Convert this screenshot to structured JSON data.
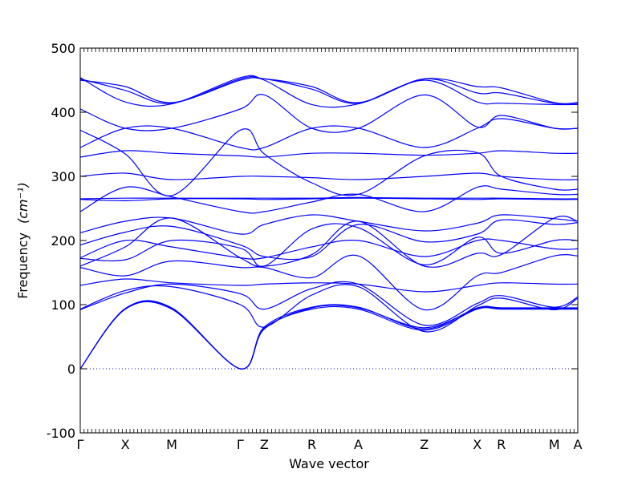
{
  "chart_data": {
    "type": "line",
    "title": "",
    "xlabel": "Wave vector",
    "ylabel": "Frequency",
    "ylabel_unit": "(cm⁻¹)",
    "ylim": [
      -100,
      500
    ],
    "yticks": [
      -100,
      0,
      100,
      200,
      300,
      400,
      500
    ],
    "grid": false,
    "legend": "none",
    "colors": {
      "bands": "#0000ff",
      "zero_line": "#0000ff",
      "axes": "#000000"
    },
    "zero_line_style": "dotted",
    "path_labels": [
      "Γ",
      "X",
      "M",
      "Γ",
      "Z",
      "R",
      "A",
      "Z",
      "X",
      "R",
      "M",
      "A"
    ],
    "path_positions": [
      0,
      0.9,
      1.83,
      3.2,
      3.68,
      4.63,
      5.56,
      6.88,
      7.94,
      8.42,
      9.48,
      9.95
    ],
    "x": [
      0,
      0.9,
      1.83,
      3.2,
      3.68,
      4.63,
      5.56,
      6.88,
      7.94,
      8.42,
      9.48,
      9.95
    ],
    "series": [
      {
        "values": [
          0,
          93,
          93,
          0,
          63,
          93,
          93,
          60,
          93,
          93,
          93,
          93
        ]
      },
      {
        "values": [
          0,
          93,
          94,
          0,
          62,
          95,
          95,
          64,
          94,
          94,
          94,
          94
        ]
      },
      {
        "values": [
          0,
          94,
          95,
          0,
          65,
          96,
          96,
          62,
          95,
          95,
          95,
          95
        ]
      },
      {
        "values": [
          92,
          118,
          132,
          117,
          93,
          125,
          132,
          68,
          102,
          114,
          96,
          112
        ]
      },
      {
        "values": [
          93,
          122,
          128,
          100,
          65,
          115,
          128,
          58,
          98,
          110,
          92,
          110
        ]
      },
      {
        "values": [
          130,
          140,
          134,
          130,
          132,
          134,
          132,
          120,
          130,
          134,
          132,
          132
        ]
      },
      {
        "values": [
          158,
          145,
          168,
          158,
          158,
          142,
          176,
          92,
          145,
          150,
          176,
          176
        ]
      },
      {
        "values": [
          160,
          190,
          235,
          173,
          160,
          178,
          230,
          160,
          180,
          178,
          235,
          230
        ]
      },
      {
        "values": [
          172,
          170,
          200,
          188,
          160,
          218,
          220,
          162,
          205,
          180,
          200,
          200
        ]
      },
      {
        "values": [
          173,
          200,
          190,
          173,
          173,
          190,
          200,
          175,
          200,
          200,
          187,
          187
        ]
      },
      {
        "values": [
          193,
          213,
          222,
          193,
          175,
          175,
          225,
          198,
          210,
          232,
          225,
          228
        ]
      },
      {
        "values": [
          212,
          230,
          235,
          210,
          225,
          240,
          230,
          215,
          227,
          240,
          234,
          230
        ]
      },
      {
        "values": [
          245,
          283,
          268,
          245,
          245,
          260,
          272,
          245,
          283,
          280,
          272,
          272
        ]
      },
      {
        "values": [
          264,
          262,
          265,
          265,
          264,
          265,
          266,
          265,
          264,
          265,
          264,
          264
        ]
      },
      {
        "values": [
          265,
          266,
          266,
          266,
          266,
          266,
          267,
          266,
          266,
          266,
          265,
          265
        ]
      },
      {
        "values": [
          300,
          305,
          295,
          300,
          300,
          298,
          295,
          300,
          305,
          300,
          295,
          295
        ]
      },
      {
        "values": [
          330,
          340,
          336,
          332,
          330,
          336,
          336,
          333,
          336,
          340,
          336,
          336
        ]
      },
      {
        "values": [
          345,
          375,
          375,
          345,
          345,
          375,
          375,
          345,
          375,
          390,
          375,
          375
        ]
      },
      {
        "values": [
          372,
          335,
          270,
          372,
          335,
          290,
          272,
          332,
          337,
          300,
          280,
          280
        ]
      },
      {
        "values": [
          405,
          375,
          375,
          405,
          427,
          375,
          375,
          427,
          377,
          395,
          375,
          375
        ]
      },
      {
        "values": [
          450,
          440,
          415,
          450,
          452,
          440,
          415,
          452,
          440,
          438,
          415,
          415
        ]
      },
      {
        "values": [
          452,
          434,
          414,
          452,
          452,
          436,
          414,
          452,
          430,
          430,
          414,
          414
        ]
      },
      {
        "values": [
          454,
          416,
          413,
          454,
          450,
          412,
          413,
          450,
          416,
          414,
          412,
          412
        ]
      }
    ]
  }
}
